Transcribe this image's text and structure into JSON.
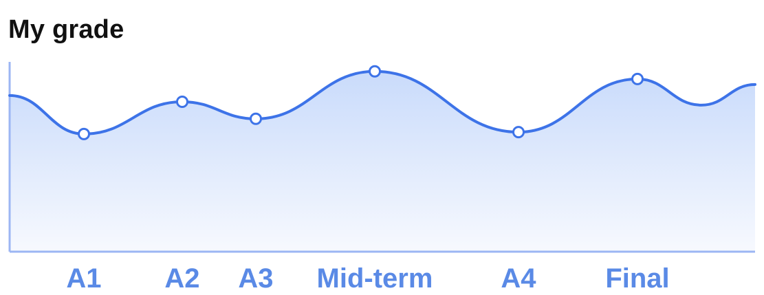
{
  "chart_data": {
    "type": "area",
    "title": "My grade",
    "xlabel": "",
    "ylabel": "",
    "categories": [
      "A1",
      "A2",
      "A3",
      "Mid-term",
      "A4",
      "Final"
    ],
    "values": [
      62,
      79,
      70,
      95,
      63,
      91
    ],
    "ylim": [
      0,
      100
    ],
    "grid": false,
    "legend": "none",
    "colors": {
      "line": "#3d73e8",
      "fill_top": "#c9dbfb",
      "fill_bottom": "#f7f9fe",
      "axis": "#9cb6f3",
      "tick_label": "#5a8ae6"
    }
  }
}
